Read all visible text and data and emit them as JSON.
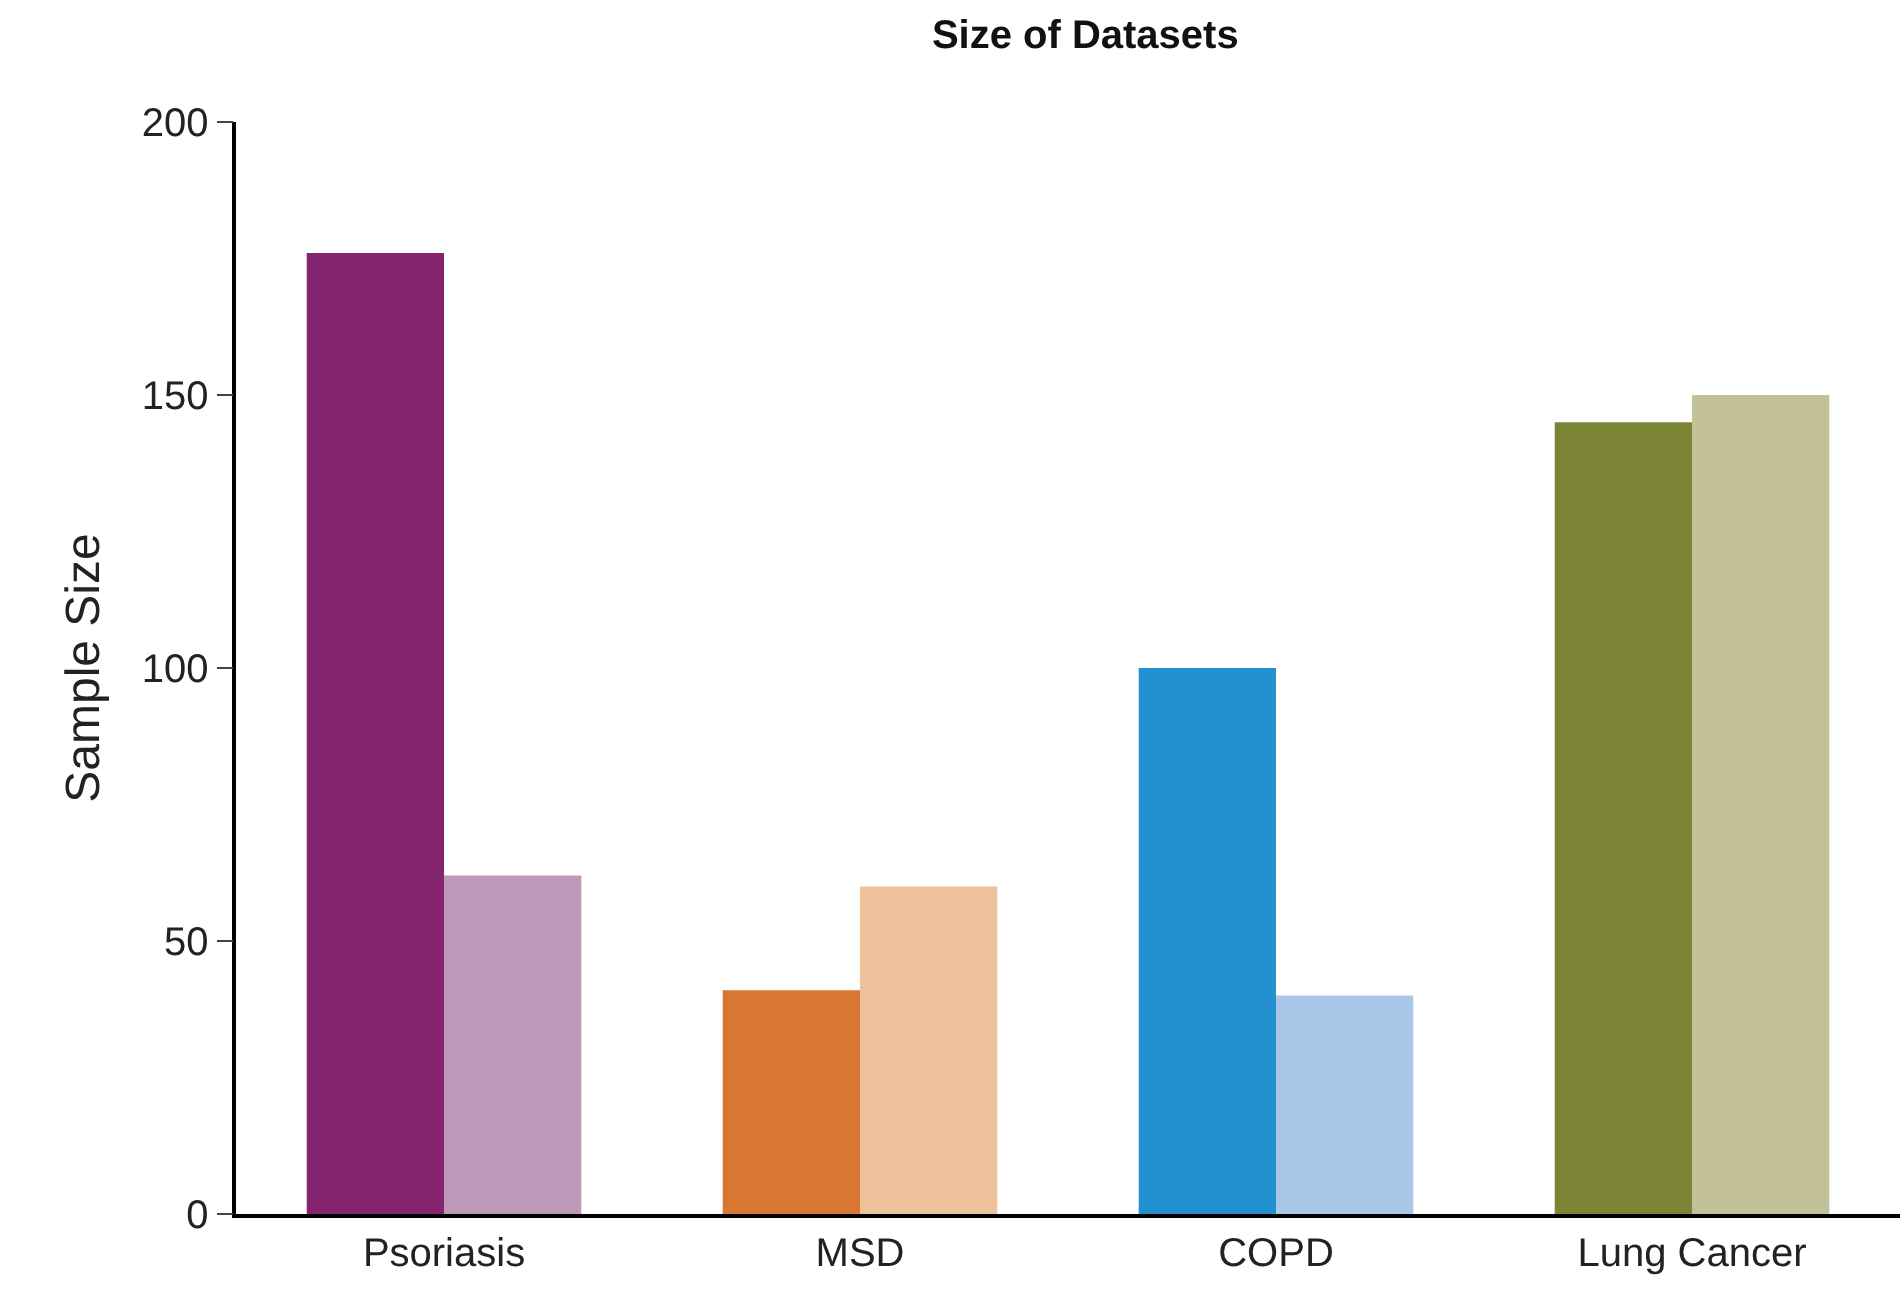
{
  "chart_data": {
    "type": "bar",
    "title": "Size of Datasets",
    "ylabel": "Sample Size",
    "categories": [
      "Psoriasis",
      "MSD",
      "COPD",
      "Lung Cancer"
    ],
    "series": [
      {
        "colors": [
          "#84246f",
          "#d87632",
          "#2390d0",
          "#7b8535"
        ],
        "values": [
          176,
          41,
          100,
          145
        ]
      },
      {
        "colors": [
          "#bd98b9",
          "#eec39b",
          "#a9c7e9",
          "#c3c19a"
        ],
        "values": [
          62,
          60,
          40,
          150
        ]
      }
    ],
    "ylim": [
      0,
      200
    ],
    "yticks": [
      0,
      50,
      100,
      150,
      200
    ]
  }
}
